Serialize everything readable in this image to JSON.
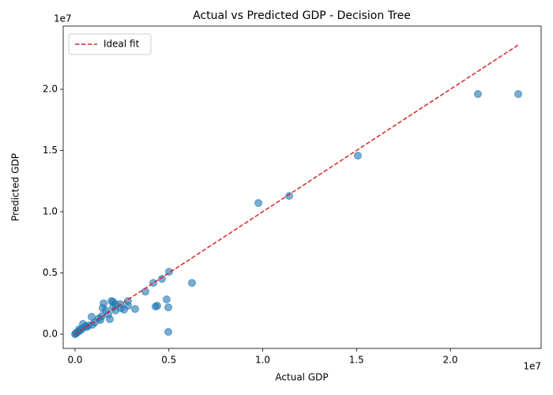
{
  "chart_data": {
    "type": "scatter",
    "title": "Actual vs Predicted GDP - Decision Tree",
    "x_label": "Actual GDP",
    "y_label": "Predicted GDP",
    "x_offset_label": "1e7",
    "y_offset_label": "1e7",
    "xlim": [
      -0.0632,
      2.484
    ],
    "ylim": [
      -0.116,
      2.516
    ],
    "xticks": [
      {
        "value": 0,
        "label": "0.0"
      },
      0.5,
      {
        "value": 1,
        "label": "1.0"
      },
      1.5,
      {
        "value": 2,
        "label": "2.0"
      }
    ],
    "yticks": [
      {
        "value": 0,
        "label": "0.0"
      },
      0.5,
      {
        "value": 1,
        "label": "1.0"
      },
      1.5,
      {
        "value": 2,
        "label": "2.0"
      }
    ],
    "grid": false,
    "legend_position": "upper left",
    "points": {
      "color": "#1f77b4",
      "x": [
        2.362,
        2.147,
        1.507,
        1.141,
        0.977,
        0.623,
        0.501,
        0.463,
        0.417,
        0.375,
        0.488,
        0.497,
        0.497,
        0.438,
        0.429,
        0.32,
        0.282,
        0.282,
        0.24,
        0.202,
        0.202,
        0.194,
        0.215,
        0.152,
        0.147,
        0.185,
        0.215,
        0.164,
        0.126,
        0.088,
        0.093,
        0.135,
        0.042,
        0.063,
        0.021,
        0.038,
        0.008,
        0,
        0.004,
        0.017,
        0.029,
        0.055,
        0.072,
        0.105,
        0.143,
        0.177,
        0.244,
        0.261
      ],
      "y": [
        1.961,
        1.961,
        1.458,
        1.129,
        1.071,
        0.419,
        0.51,
        0.452,
        0.419,
        0.348,
        0.284,
        0.219,
        0.019,
        0.232,
        0.226,
        0.206,
        0.271,
        0.232,
        0.245,
        0.265,
        0.219,
        0.271,
        0.245,
        0.252,
        0.213,
        0.123,
        0.194,
        0.194,
        0.129,
        0.142,
        0.077,
        0.116,
        0.084,
        0.058,
        0.039,
        0.045,
        0.013,
        0,
        0.006,
        0.019,
        0.032,
        0.065,
        0.071,
        0.097,
        0.148,
        0.161,
        0.213,
        0.2
      ]
    },
    "fit_line": {
      "name": "Ideal fit",
      "color": "#d62728",
      "x": [
        0,
        2.365
      ],
      "y": [
        0,
        2.365
      ]
    }
  }
}
